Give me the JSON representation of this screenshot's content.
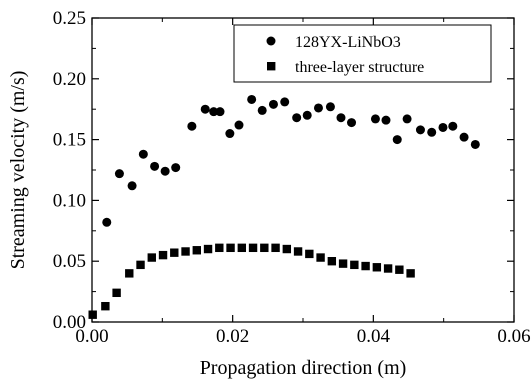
{
  "chart_data": {
    "type": "scatter",
    "title": "",
    "xlabel": "Propagation direction (m)",
    "ylabel": "Streaming velocity (m/s)",
    "xlim": [
      0.0,
      0.06
    ],
    "ylim": [
      0.0,
      0.25
    ],
    "x_ticks": [
      "0.00",
      "0.02",
      "0.04",
      "0.06"
    ],
    "y_ticks": [
      "0.00",
      "0.05",
      "0.10",
      "0.15",
      "0.20",
      "0.25"
    ],
    "grid": false,
    "legend_position": "top-right",
    "series": [
      {
        "name": "128YX-LiNbO3",
        "marker": "circle",
        "color": "#000000",
        "points": [
          [
            0.0021,
            0.082
          ],
          [
            0.0039,
            0.122
          ],
          [
            0.0057,
            0.112
          ],
          [
            0.0073,
            0.138
          ],
          [
            0.0089,
            0.128
          ],
          [
            0.0104,
            0.124
          ],
          [
            0.0119,
            0.127
          ],
          [
            0.0142,
            0.161
          ],
          [
            0.0161,
            0.175
          ],
          [
            0.0173,
            0.173
          ],
          [
            0.0182,
            0.173
          ],
          [
            0.0196,
            0.155
          ],
          [
            0.0209,
            0.162
          ],
          [
            0.0227,
            0.183
          ],
          [
            0.0242,
            0.174
          ],
          [
            0.0258,
            0.179
          ],
          [
            0.0274,
            0.181
          ],
          [
            0.0291,
            0.168
          ],
          [
            0.0306,
            0.17
          ],
          [
            0.0322,
            0.176
          ],
          [
            0.0339,
            0.177
          ],
          [
            0.0354,
            0.168
          ],
          [
            0.0369,
            0.164
          ],
          [
            0.0403,
            0.167
          ],
          [
            0.0418,
            0.166
          ],
          [
            0.0434,
            0.15
          ],
          [
            0.0448,
            0.167
          ],
          [
            0.0467,
            0.158
          ],
          [
            0.0483,
            0.156
          ],
          [
            0.0499,
            0.16
          ],
          [
            0.0513,
            0.161
          ],
          [
            0.0529,
            0.152
          ],
          [
            0.0545,
            0.146
          ]
        ]
      },
      {
        "name": "three-layer structure",
        "marker": "square",
        "color": "#000000",
        "points": [
          [
            0.0001,
            0.006
          ],
          [
            0.0019,
            0.013
          ],
          [
            0.0035,
            0.024
          ],
          [
            0.0053,
            0.04
          ],
          [
            0.0069,
            0.047
          ],
          [
            0.0085,
            0.053
          ],
          [
            0.0101,
            0.055
          ],
          [
            0.0117,
            0.057
          ],
          [
            0.0133,
            0.058
          ],
          [
            0.0149,
            0.059
          ],
          [
            0.0165,
            0.06
          ],
          [
            0.0181,
            0.061
          ],
          [
            0.0197,
            0.061
          ],
          [
            0.0213,
            0.061
          ],
          [
            0.0229,
            0.061
          ],
          [
            0.0245,
            0.061
          ],
          [
            0.0261,
            0.061
          ],
          [
            0.0277,
            0.06
          ],
          [
            0.0293,
            0.058
          ],
          [
            0.0309,
            0.056
          ],
          [
            0.0325,
            0.053
          ],
          [
            0.0341,
            0.05
          ],
          [
            0.0357,
            0.048
          ],
          [
            0.0373,
            0.047
          ],
          [
            0.0389,
            0.046
          ],
          [
            0.0405,
            0.045
          ],
          [
            0.0421,
            0.044
          ],
          [
            0.0437,
            0.043
          ],
          [
            0.0453,
            0.04
          ]
        ]
      }
    ]
  }
}
